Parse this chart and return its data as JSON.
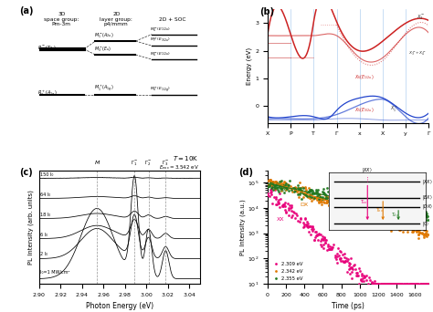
{
  "fig_bg": "#ffffff",
  "panel_a": {
    "col_headers": [
      "3D\nspace group:\nPm-3m",
      "2D\nlayer group:\np4/mmm",
      "2D + SOC"
    ]
  },
  "panel_b": {
    "ylabel": "Energy (eV)",
    "xticks": [
      "X",
      "P",
      "T",
      "Γ",
      "x",
      "X",
      "y",
      "Γ"
    ],
    "ylim": [
      -0.6,
      3.5
    ],
    "yticks": [
      0,
      1,
      2,
      3
    ]
  },
  "panel_c": {
    "xlabel": "Photon Energy (eV)",
    "ylabel": "PL Intensity (arb. units)",
    "xmin": 2.9,
    "xmax": 3.05,
    "intensities": [
      "150 I₀",
      "64 I₀",
      "18 I₀",
      "6 I₀",
      "2 I₀",
      "I₀=1 MW/cm²"
    ],
    "M_x": 2.954,
    "vline_M": 2.954,
    "vline_G1": 2.989,
    "vline_G2": 3.002,
    "vline_G3": 3.018
  },
  "panel_d": {
    "xlabel": "Time (ps)",
    "ylabel": "PL Intensity (a.u.)",
    "xmin": 0,
    "xmax": 1750,
    "ymin": 10,
    "ymax": 300000,
    "legend": [
      "2.309 eV",
      "2.342 eV",
      "2.355 eV"
    ],
    "colors_scatter": [
      "#e8007a",
      "#e07800",
      "#207820"
    ],
    "colors_fit": [
      "#e07800",
      "#e07800",
      "#207820"
    ]
  }
}
